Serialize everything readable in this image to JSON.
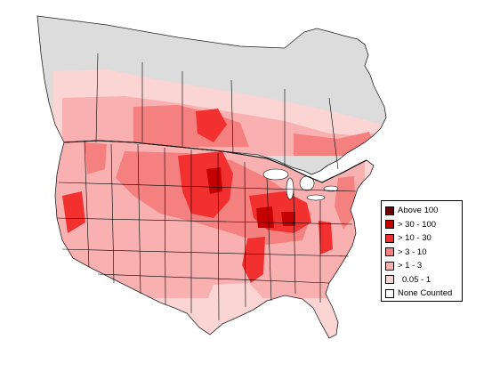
{
  "colors": {
    "water": "#ffffff",
    "none_counted_land": "#dcdcdc",
    "boundary": "#000000",
    "coast": "#222222"
  },
  "legend": {
    "items": [
      {
        "label": "Above 100",
        "color": "#6b0000"
      },
      {
        "label": "> 30 - 100",
        "color": "#c40000"
      },
      {
        "label": "> 10 - 30",
        "color": "#f23030"
      },
      {
        "label": "> 3 - 10",
        "color": "#f58080"
      },
      {
        "label": "> 1 - 3",
        "color": "#f8b0b0"
      },
      {
        "label": "0.05 - 1",
        "color": "#fbd4d4"
      },
      {
        "label": "None Counted",
        "color": "#ffffff"
      }
    ]
  }
}
